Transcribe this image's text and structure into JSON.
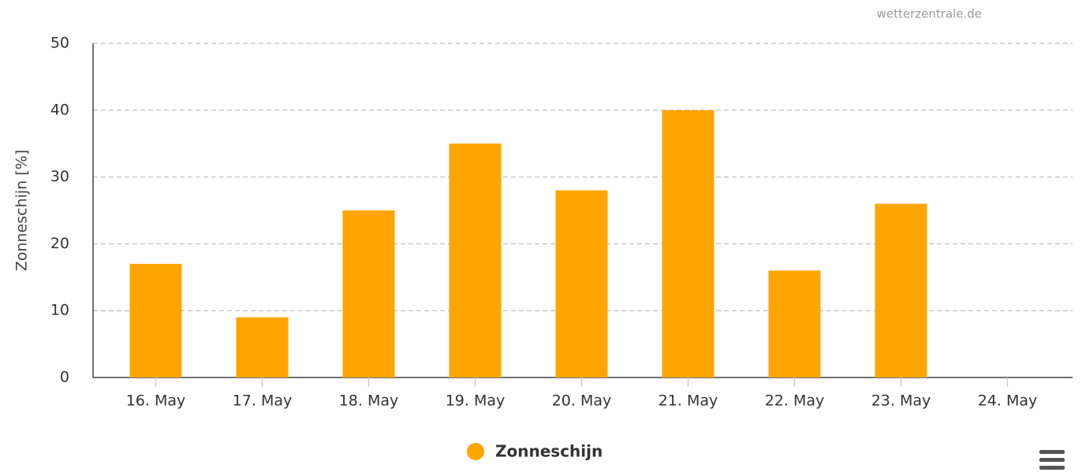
{
  "chart_data": {
    "type": "bar",
    "credit": "wetterzentrale.de",
    "y_label": "Zonneschijn [%]",
    "categories": [
      "16. May",
      "17. May",
      "18. May",
      "19. May",
      "20. May",
      "21. May",
      "22. May",
      "23. May",
      "24. May"
    ],
    "series": [
      {
        "name": "Zonneschijn",
        "color": "#ffa500",
        "values": [
          17,
          9,
          25,
          35,
          28,
          40,
          16,
          26,
          null
        ]
      }
    ],
    "ylim": [
      0,
      50
    ],
    "yticks": [
      0,
      10,
      20,
      30,
      40,
      50
    ],
    "grid": true,
    "legend": "bottom"
  }
}
